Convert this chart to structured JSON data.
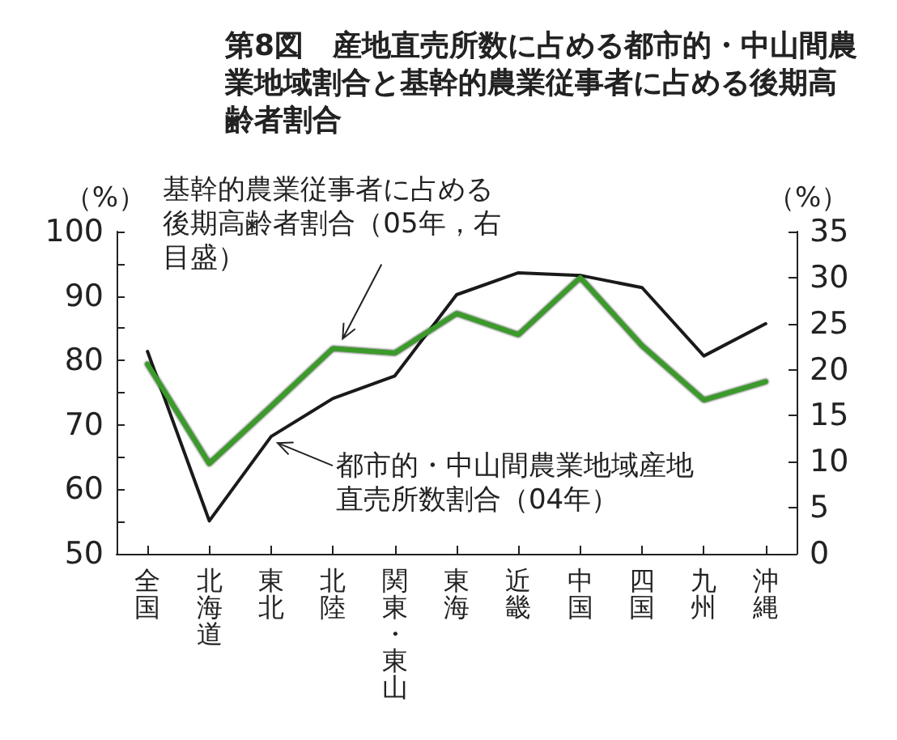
{
  "chart_data": {
    "type": "line",
    "title": "第8図　産地直売所数に占める都市的・中山間農業地域割合と基幹的農業従事者に占める後期高齢者割合",
    "ylabel": "（%）",
    "y2label": "（%）",
    "categories": [
      "全国",
      "北海道",
      "東北",
      "北陸",
      "関東・東山",
      "東海",
      "近畿",
      "中国",
      "四国",
      "九州",
      "沖縄"
    ],
    "series": [
      {
        "name": "都市的・中山間農業地域産地直売所数割合（04年）",
        "color": "#1a1a1a",
        "values": [
          81.4,
          55.1,
          68.2,
          74.1,
          77.6,
          90.2,
          93.6,
          93.2,
          91.3,
          80.7,
          85.7
        ]
      },
      {
        "name": "基幹的農業従事者に占める後期高齢者割合（05年，右目盛）",
        "color": "#3a9a2a",
        "axis": "y2",
        "values": [
          20.6,
          9.8,
          16.0,
          22.3,
          21.8,
          26.1,
          23.8,
          30.0,
          22.6,
          16.7,
          18.7
        ]
      }
    ],
    "ylim": [
      50,
      100
    ],
    "yticks": [
      50,
      {
        "value": 55,
        "label": null
      },
      60,
      {
        "value": 65,
        "label": null
      },
      70,
      {
        "value": 75,
        "label": null
      },
      80,
      {
        "value": 85,
        "label": null
      },
      90,
      {
        "value": 95,
        "label": null
      },
      100
    ],
    "y2lim": [
      0,
      35
    ],
    "y2ticks": [
      0,
      5,
      10,
      15,
      20,
      25,
      30,
      35
    ],
    "grid": false,
    "marker": "none",
    "line_style": "solid"
  }
}
